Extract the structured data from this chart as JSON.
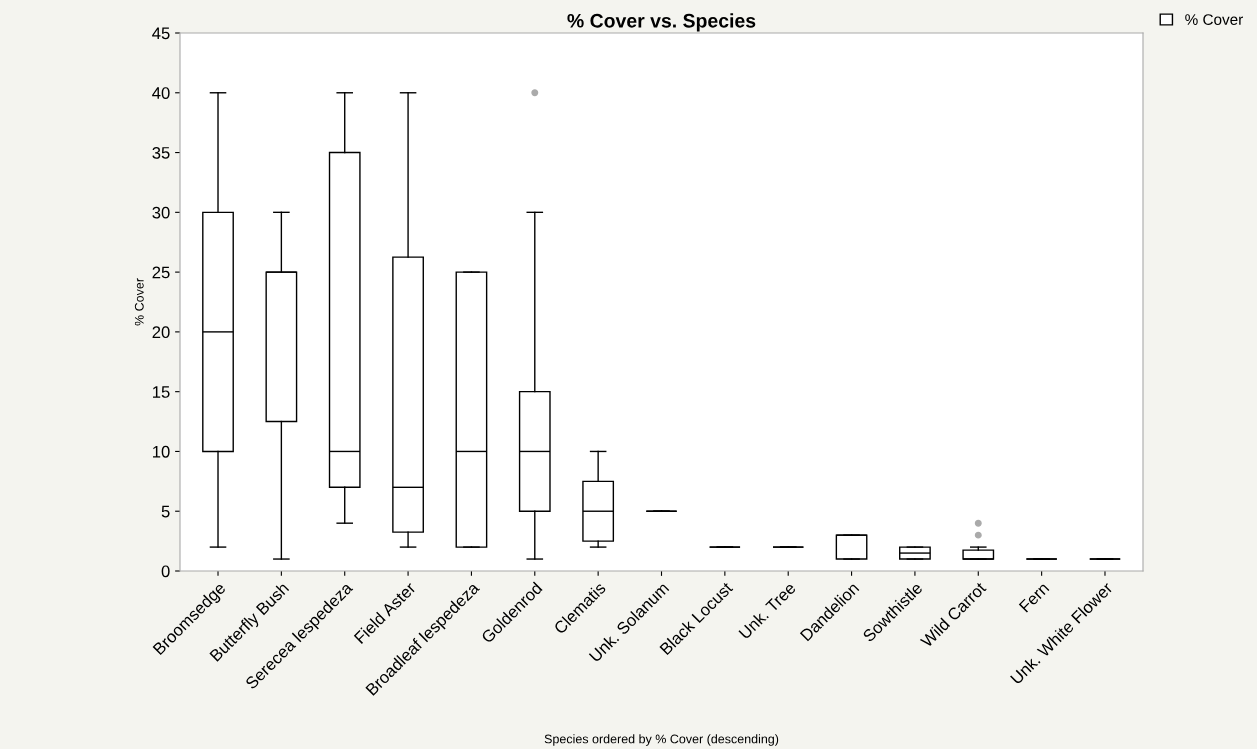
{
  "chart_data": {
    "type": "box",
    "title": "% Cover vs. Species",
    "xlabel": "Species ordered by % Cover (descending)",
    "ylabel": "% Cover",
    "categories": [
      "Broomsedge",
      "Butterfly Bush",
      "Serecea lespedeza",
      "Field Aster",
      "Broadleaf lespedeza",
      "Goldenrod",
      "Clematis",
      "Unk. Solanum",
      "Black Locust",
      "Unk. Tree",
      "Dandelion",
      "Sowthistle",
      "Wild Carrot",
      "Fern",
      "Unk. White Flower"
    ],
    "series": [
      {
        "name": "% Cover",
        "color": "#000000",
        "boxes": [
          {
            "low": 2,
            "q1": 10,
            "median": 20,
            "q3": 30,
            "high": 40
          },
          {
            "low": 1,
            "q1": 12.5,
            "median": 25,
            "q3": 25,
            "high": 30
          },
          {
            "low": 4,
            "q1": 7,
            "median": 10,
            "q3": 35,
            "high": 40
          },
          {
            "low": 2,
            "q1": 3.25,
            "median": 7,
            "q3": 26.25,
            "high": 40
          },
          {
            "low": 2,
            "q1": 2,
            "median": 10,
            "q3": 25,
            "high": 25
          },
          {
            "low": 1,
            "q1": 5,
            "median": 10,
            "q3": 15,
            "high": 30,
            "outliers": [
              40
            ]
          },
          {
            "low": 2,
            "q1": 2.5,
            "median": 5,
            "q3": 7.5,
            "high": 10
          },
          {
            "low": 5,
            "q1": 5,
            "median": 5,
            "q3": 5,
            "high": 5
          },
          {
            "low": 2,
            "q1": 2,
            "median": 2,
            "q3": 2,
            "high": 2
          },
          {
            "low": 2,
            "q1": 2,
            "median": 2,
            "q3": 2,
            "high": 2
          },
          {
            "low": 1,
            "q1": 1,
            "median": 3,
            "q3": 3,
            "high": 3
          },
          {
            "low": 1,
            "q1": 1,
            "median": 1.5,
            "q3": 2,
            "high": 2
          },
          {
            "low": 1,
            "q1": 1,
            "median": 1,
            "q3": 1.75,
            "high": 2,
            "outliers": [
              3,
              4
            ]
          },
          {
            "low": 1,
            "q1": 1,
            "median": 1,
            "q3": 1,
            "high": 1
          },
          {
            "low": 1,
            "q1": 1,
            "median": 1,
            "q3": 1,
            "high": 1
          }
        ]
      }
    ],
    "ylim": [
      0,
      45
    ],
    "yticks": [
      0,
      5,
      10,
      15,
      20,
      25,
      30,
      35,
      40,
      45
    ],
    "grid": false,
    "legend": "top right"
  }
}
